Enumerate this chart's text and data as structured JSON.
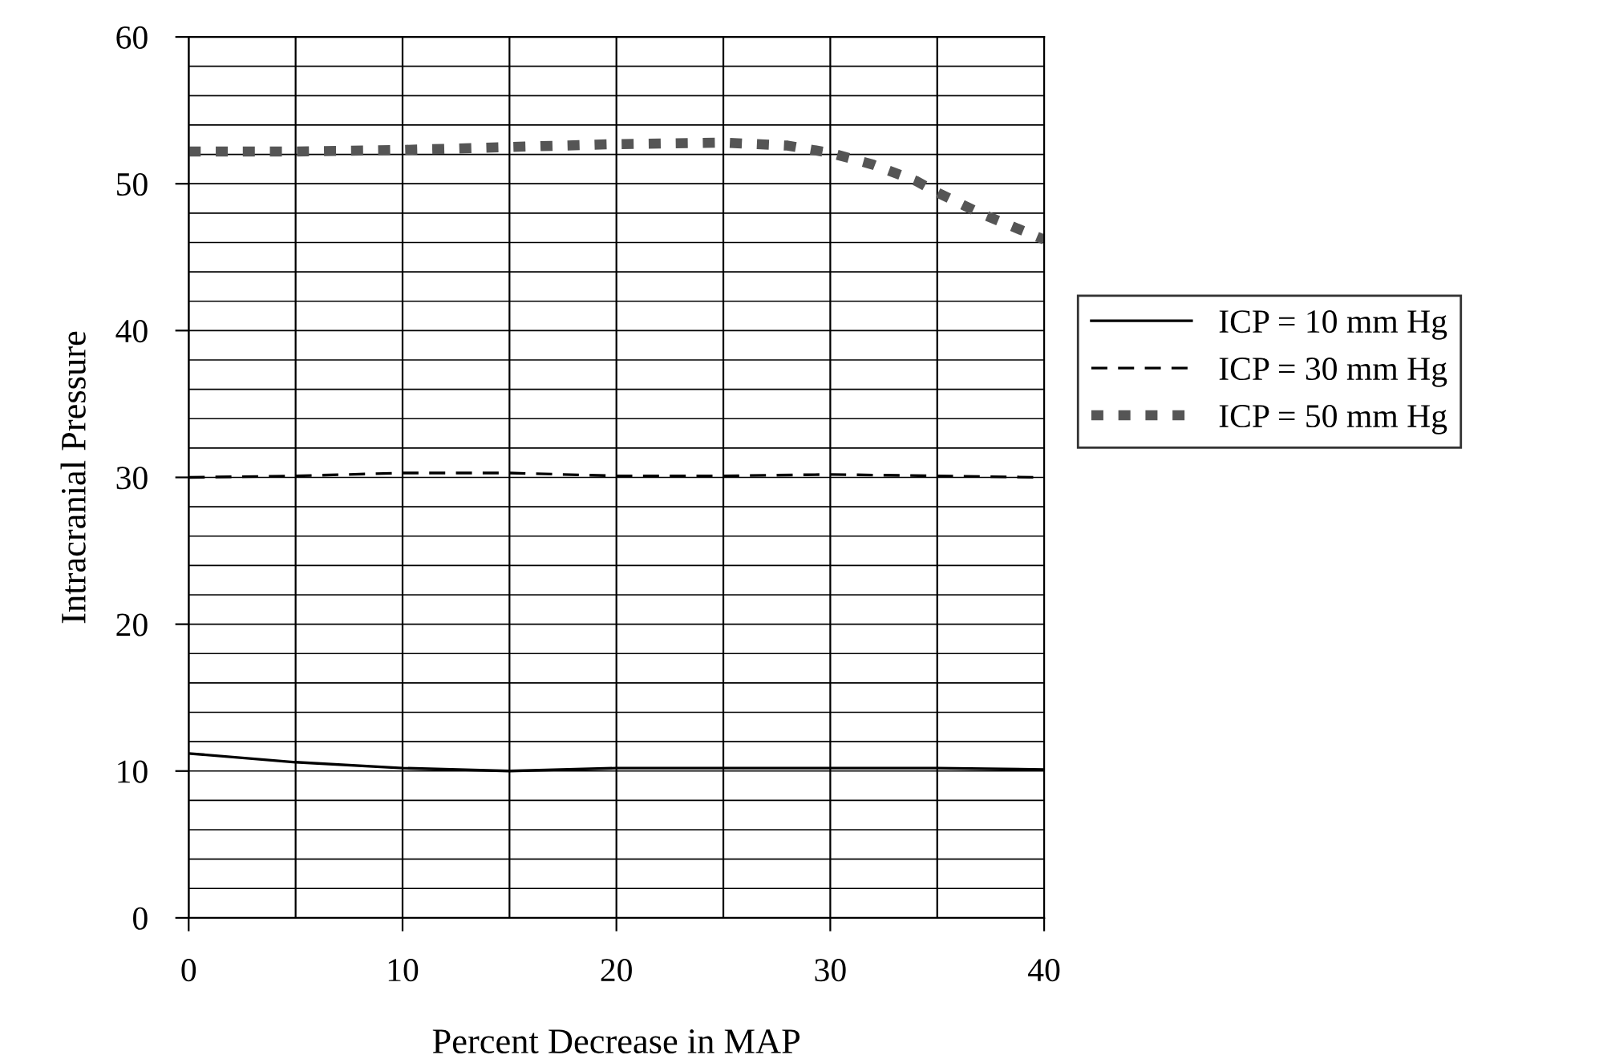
{
  "chart_data": {
    "type": "line",
    "xlabel": "Percent Decrease in MAP",
    "ylabel": "Intracranial Pressure",
    "xlim": [
      0,
      40
    ],
    "xticks": [
      0,
      10,
      20,
      30,
      40
    ],
    "ylim": [
      0,
      60
    ],
    "yticks": [
      0,
      10,
      20,
      30,
      40,
      50,
      60
    ],
    "grid": true,
    "legend": "right",
    "marker": "none",
    "series": [
      {
        "name": "ICP = 10 mm Hg",
        "color": "#000000",
        "line_style": "solid",
        "x": [
          0,
          5,
          10,
          15,
          20,
          25,
          30,
          35,
          40
        ],
        "values": [
          11.2,
          10.6,
          10.2,
          10.0,
          10.2,
          10.2,
          10.2,
          10.2,
          10.1
        ]
      },
      {
        "name": "ICP = 30 mm Hg",
        "color": "#000000",
        "line_style": "dashed",
        "x": [
          0,
          5,
          10,
          15,
          20,
          25,
          30,
          35,
          40
        ],
        "values": [
          30.0,
          30.1,
          30.3,
          30.3,
          30.1,
          30.1,
          30.2,
          30.1,
          30.0
        ]
      },
      {
        "name": "ICP = 50 mm Hg",
        "color": "#555555",
        "line_style": "dotted",
        "x": [
          0,
          5,
          10,
          15,
          20,
          25,
          28,
          30,
          32,
          34,
          35,
          37,
          39,
          40
        ],
        "values": [
          52.2,
          52.2,
          52.3,
          52.5,
          52.7,
          52.8,
          52.6,
          52.1,
          51.3,
          50.2,
          49.4,
          48.0,
          46.8,
          46.2
        ]
      }
    ]
  }
}
